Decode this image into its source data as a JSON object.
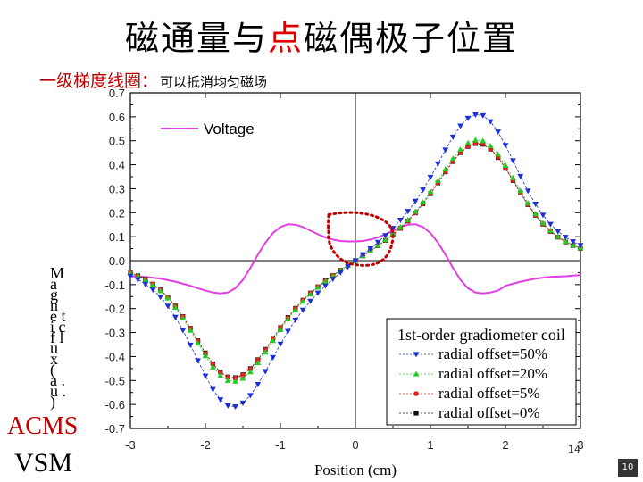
{
  "slide": {
    "title_part1": "磁通量与",
    "title_highlight": "点",
    "title_part2": "磁偶极子位置",
    "subtitle": "一级梯度线圈：",
    "subtitle_note": "可以抵消均匀磁场",
    "side_label_1": "ACMS",
    "side_label_2": "VSM",
    "page_number": "14",
    "slide_number": "10"
  },
  "chart_data": {
    "type": "line",
    "xlabel": "Position (cm)",
    "ylabel": "Magnetic flux (a.u.)",
    "ylabel_display": "M a g n e t i c f l u x ( a . u . )",
    "xlim": [
      -3,
      3
    ],
    "ylim": [
      -0.7,
      0.7
    ],
    "x_ticks": [
      -3,
      -2,
      -1,
      0,
      1,
      2,
      3
    ],
    "y_ticks": [
      0.7,
      0.6,
      0.5,
      0.4,
      0.3,
      0.2,
      0.1,
      0.0,
      -0.1,
      -0.2,
      -0.3,
      -0.4,
      -0.5,
      -0.6,
      -0.7
    ],
    "y_tick_labels": [
      "0.7",
      "0.6",
      "0.5",
      "0.4",
      "0.3",
      "0.2",
      "0.1",
      "0.0",
      "-0.1",
      "-0.2",
      "-0.3",
      "-0.4",
      "-0.5",
      "-0.6",
      "-0.7"
    ],
    "voltage_label": "Voltage",
    "legend_title": "1st-order gradiometer coil",
    "colors": {
      "voltage": "#e040e0",
      "s50": "#1a2fd6",
      "s20": "#22cc22",
      "s5": "#e02020",
      "s0": "#111111",
      "annotation": "#c00000"
    },
    "x": [
      -3.0,
      -2.9,
      -2.8,
      -2.7,
      -2.6,
      -2.5,
      -2.4,
      -2.3,
      -2.2,
      -2.1,
      -2.0,
      -1.9,
      -1.8,
      -1.7,
      -1.6,
      -1.5,
      -1.4,
      -1.3,
      -1.2,
      -1.1,
      -1.0,
      -0.9,
      -0.8,
      -0.7,
      -0.6,
      -0.5,
      -0.4,
      -0.3,
      -0.2,
      -0.1,
      0.0,
      0.1,
      0.2,
      0.3,
      0.4,
      0.5,
      0.6,
      0.7,
      0.8,
      0.9,
      1.0,
      1.1,
      1.2,
      1.3,
      1.4,
      1.5,
      1.6,
      1.7,
      1.8,
      1.9,
      2.0,
      2.1,
      2.2,
      2.3,
      2.4,
      2.5,
      2.6,
      2.7,
      2.8,
      2.9,
      3.0
    ],
    "series": [
      {
        "name": "radial offset=50%",
        "marker": "triangle-down",
        "values": [
          -0.064,
          -0.079,
          -0.098,
          -0.122,
          -0.152,
          -0.19,
          -0.236,
          -0.291,
          -0.352,
          -0.417,
          -0.481,
          -0.537,
          -0.58,
          -0.605,
          -0.609,
          -0.594,
          -0.562,
          -0.516,
          -0.462,
          -0.404,
          -0.348,
          -0.295,
          -0.248,
          -0.206,
          -0.169,
          -0.135,
          -0.105,
          -0.077,
          -0.05,
          -0.025,
          0.0,
          0.025,
          0.05,
          0.077,
          0.105,
          0.135,
          0.169,
          0.206,
          0.248,
          0.295,
          0.348,
          0.404,
          0.462,
          0.516,
          0.562,
          0.594,
          0.609,
          0.605,
          0.58,
          0.537,
          0.481,
          0.417,
          0.352,
          0.291,
          0.236,
          0.19,
          0.152,
          0.122,
          0.098,
          0.079,
          0.064
        ]
      },
      {
        "name": "radial offset=20%",
        "marker": "triangle-up",
        "values": [
          -0.053,
          -0.065,
          -0.081,
          -0.101,
          -0.126,
          -0.157,
          -0.195,
          -0.24,
          -0.291,
          -0.345,
          -0.397,
          -0.444,
          -0.479,
          -0.5,
          -0.503,
          -0.491,
          -0.464,
          -0.426,
          -0.382,
          -0.334,
          -0.288,
          -0.244,
          -0.205,
          -0.17,
          -0.14,
          -0.112,
          -0.087,
          -0.064,
          -0.041,
          -0.02,
          0.0,
          0.02,
          0.041,
          0.064,
          0.087,
          0.112,
          0.14,
          0.17,
          0.205,
          0.244,
          0.288,
          0.334,
          0.382,
          0.426,
          0.464,
          0.491,
          0.503,
          0.5,
          0.479,
          0.444,
          0.397,
          0.345,
          0.291,
          0.24,
          0.195,
          0.157,
          0.126,
          0.101,
          0.081,
          0.065,
          0.053
        ]
      },
      {
        "name": "radial offset=5%",
        "marker": "circle",
        "values": [
          -0.051,
          -0.064,
          -0.079,
          -0.098,
          -0.123,
          -0.153,
          -0.19,
          -0.234,
          -0.283,
          -0.336,
          -0.387,
          -0.432,
          -0.467,
          -0.487,
          -0.49,
          -0.478,
          -0.452,
          -0.415,
          -0.372,
          -0.325,
          -0.28,
          -0.238,
          -0.2,
          -0.166,
          -0.136,
          -0.109,
          -0.085,
          -0.062,
          -0.04,
          -0.02,
          0.0,
          0.02,
          0.04,
          0.062,
          0.085,
          0.109,
          0.136,
          0.166,
          0.2,
          0.238,
          0.28,
          0.325,
          0.372,
          0.415,
          0.452,
          0.478,
          0.49,
          0.487,
          0.467,
          0.432,
          0.387,
          0.336,
          0.283,
          0.234,
          0.19,
          0.153,
          0.123,
          0.098,
          0.079,
          0.064,
          0.051
        ]
      },
      {
        "name": "radial offset=0%",
        "marker": "square",
        "values": [
          -0.051,
          -0.063,
          -0.078,
          -0.098,
          -0.122,
          -0.152,
          -0.189,
          -0.233,
          -0.282,
          -0.334,
          -0.385,
          -0.43,
          -0.465,
          -0.485,
          -0.488,
          -0.476,
          -0.45,
          -0.413,
          -0.37,
          -0.324,
          -0.279,
          -0.237,
          -0.199,
          -0.165,
          -0.135,
          -0.109,
          -0.084,
          -0.062,
          -0.04,
          -0.02,
          0.0,
          0.02,
          0.04,
          0.062,
          0.084,
          0.109,
          0.135,
          0.165,
          0.199,
          0.237,
          0.279,
          0.324,
          0.37,
          0.413,
          0.45,
          0.476,
          0.488,
          0.485,
          0.465,
          0.43,
          0.385,
          0.334,
          0.282,
          0.233,
          0.189,
          0.152,
          0.122,
          0.098,
          0.078,
          0.063,
          0.051
        ]
      }
    ],
    "voltage": {
      "name": "Voltage",
      "x": [
        -3.0,
        -2.8,
        -2.6,
        -2.4,
        -2.2,
        -2.0,
        -1.9,
        -1.8,
        -1.7,
        -1.6,
        -1.5,
        -1.4,
        -1.3,
        -1.2,
        -1.1,
        -1.0,
        -0.9,
        -0.8,
        -0.7,
        -0.6,
        -0.5,
        -0.4,
        -0.3,
        -0.2,
        -0.1,
        0.0,
        0.1,
        0.2,
        0.3,
        0.4,
        0.5,
        0.6,
        0.7,
        0.8,
        0.9,
        1.0,
        1.1,
        1.2,
        1.3,
        1.4,
        1.5,
        1.6,
        1.7,
        1.8,
        1.9,
        2.0,
        2.2,
        2.4,
        2.6,
        2.8,
        3.0
      ],
      "values": [
        -0.065,
        -0.068,
        -0.075,
        -0.088,
        -0.105,
        -0.125,
        -0.133,
        -0.137,
        -0.133,
        -0.115,
        -0.08,
        -0.03,
        0.025,
        0.075,
        0.115,
        0.14,
        0.152,
        0.15,
        0.14,
        0.125,
        0.11,
        0.097,
        0.088,
        0.082,
        0.08,
        0.08,
        0.082,
        0.088,
        0.097,
        0.11,
        0.125,
        0.14,
        0.15,
        0.152,
        0.14,
        0.115,
        0.075,
        0.025,
        -0.03,
        -0.08,
        -0.115,
        -0.133,
        -0.137,
        -0.133,
        -0.125,
        -0.105,
        -0.088,
        -0.075,
        -0.068,
        -0.065,
        -0.06
      ]
    }
  }
}
